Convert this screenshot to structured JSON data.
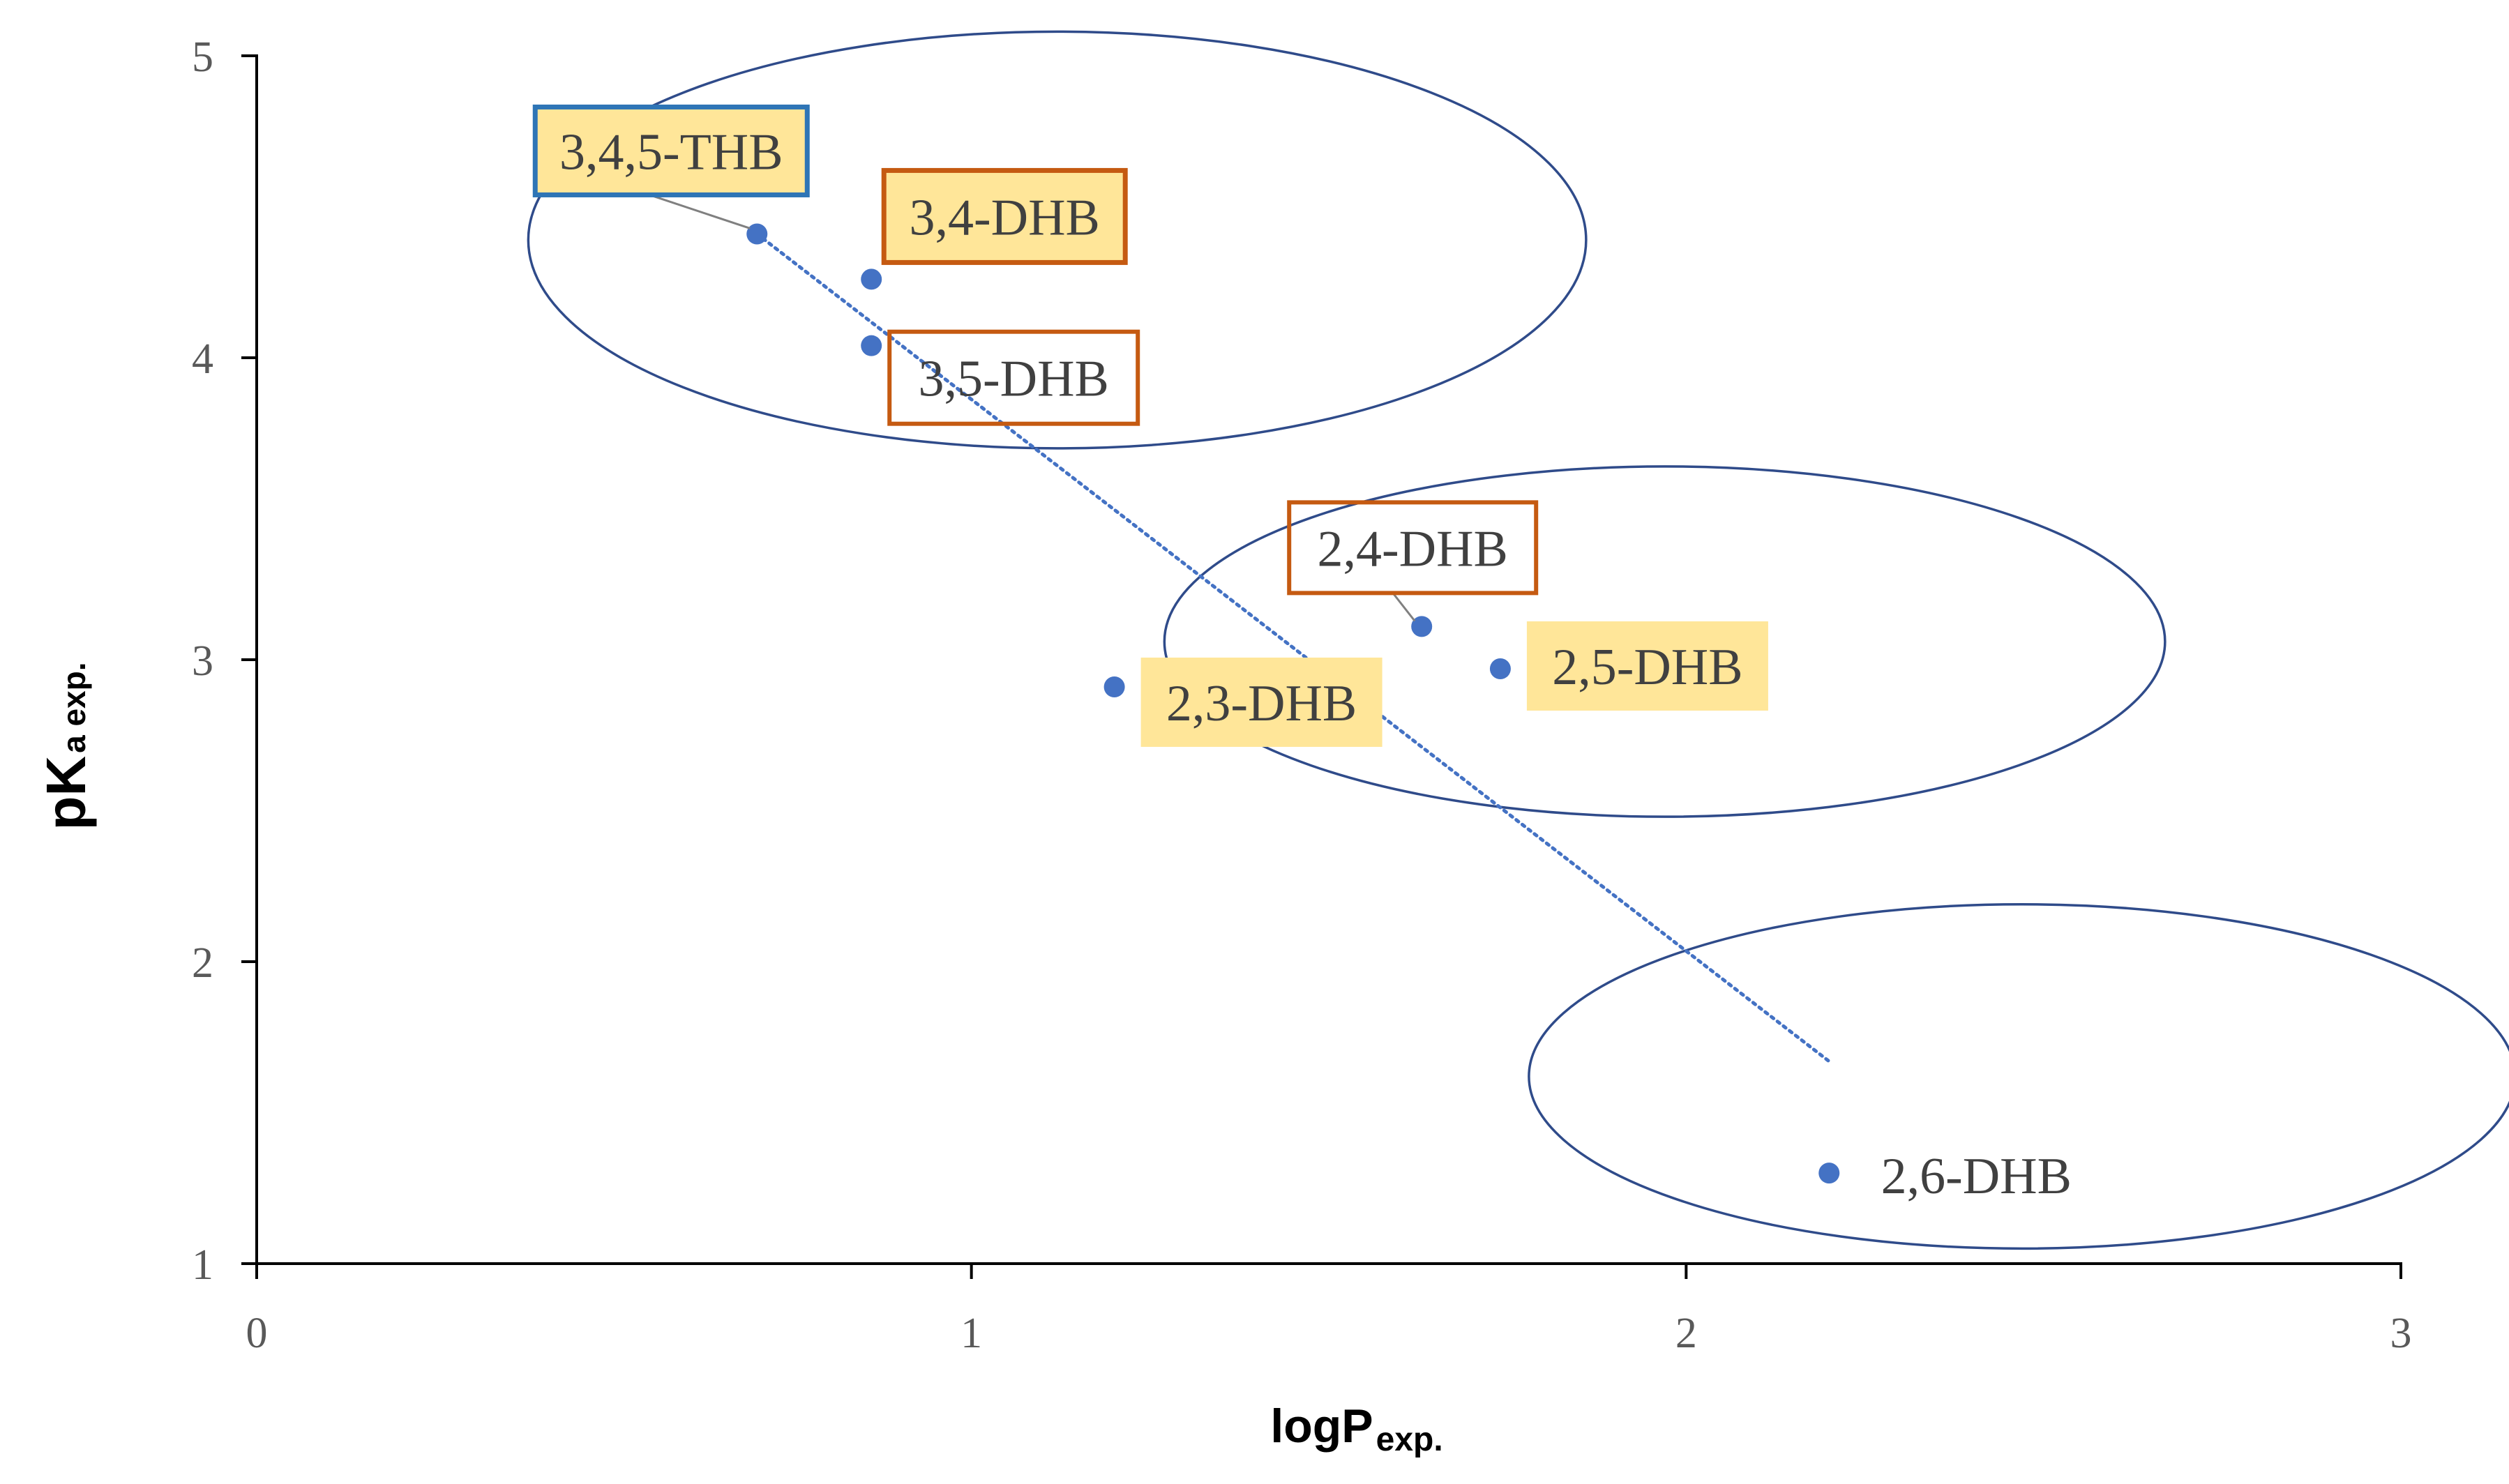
{
  "chart_data": {
    "type": "scatter",
    "title": "",
    "xlabel": {
      "main": "logP",
      "sub": "exp."
    },
    "ylabel": {
      "main": "pK",
      "sub": "a exp."
    },
    "xlim": [
      0,
      3
    ],
    "ylim": [
      1,
      5
    ],
    "xticks": [
      "0",
      "1",
      "2",
      "3"
    ],
    "yticks": [
      "1",
      "2",
      "3",
      "4",
      "5"
    ],
    "grid": false,
    "colors": {
      "point": "#4472c4",
      "trendline": "#4472c4",
      "ellipse": "#2f4b8a",
      "axis": "#000000",
      "label_fill": "#ffe699",
      "border_orange": "#c55a11",
      "border_blue": "#2e75b6"
    },
    "points": [
      {
        "name": "3,4,5-THB",
        "x": 0.7,
        "y": 4.41,
        "box": "blue-filled"
      },
      {
        "name": "3,4-DHB",
        "x": 0.86,
        "y": 4.26,
        "box": "orange-filled"
      },
      {
        "name": "3,5-DHB",
        "x": 0.86,
        "y": 4.04,
        "box": "orange-outline"
      },
      {
        "name": "2,4-DHB",
        "x": 1.63,
        "y": 3.11,
        "box": "orange-outline"
      },
      {
        "name": "2,5-DHB",
        "x": 1.74,
        "y": 2.97,
        "box": "filled"
      },
      {
        "name": "2,3-DHB",
        "x": 1.2,
        "y": 2.91,
        "box": "filled"
      },
      {
        "name": "2,6-DHB",
        "x": 2.2,
        "y": 1.3,
        "box": "none"
      }
    ],
    "trendline": {
      "type": "linear",
      "from": {
        "x": 0.7,
        "y": 4.41
      },
      "to": {
        "x": 2.2,
        "y": 1.67
      }
    },
    "clusters": [
      {
        "name": "cluster-1",
        "members": [
          "3,4,5-THB",
          "3,4-DHB",
          "3,5-DHB"
        ],
        "cx": 1.12,
        "cy": 4.39,
        "rx": 0.74,
        "ry": 0.69
      },
      {
        "name": "cluster-2",
        "members": [
          "2,3-DHB",
          "2,4-DHB",
          "2,5-DHB"
        ],
        "cx": 1.97,
        "cy": 3.06,
        "rx": 0.7,
        "ry": 0.58
      },
      {
        "name": "cluster-3",
        "members": [
          "2,6-DHB"
        ],
        "cx": 2.47,
        "cy": 1.62,
        "rx": 0.69,
        "ry": 0.57
      }
    ]
  }
}
